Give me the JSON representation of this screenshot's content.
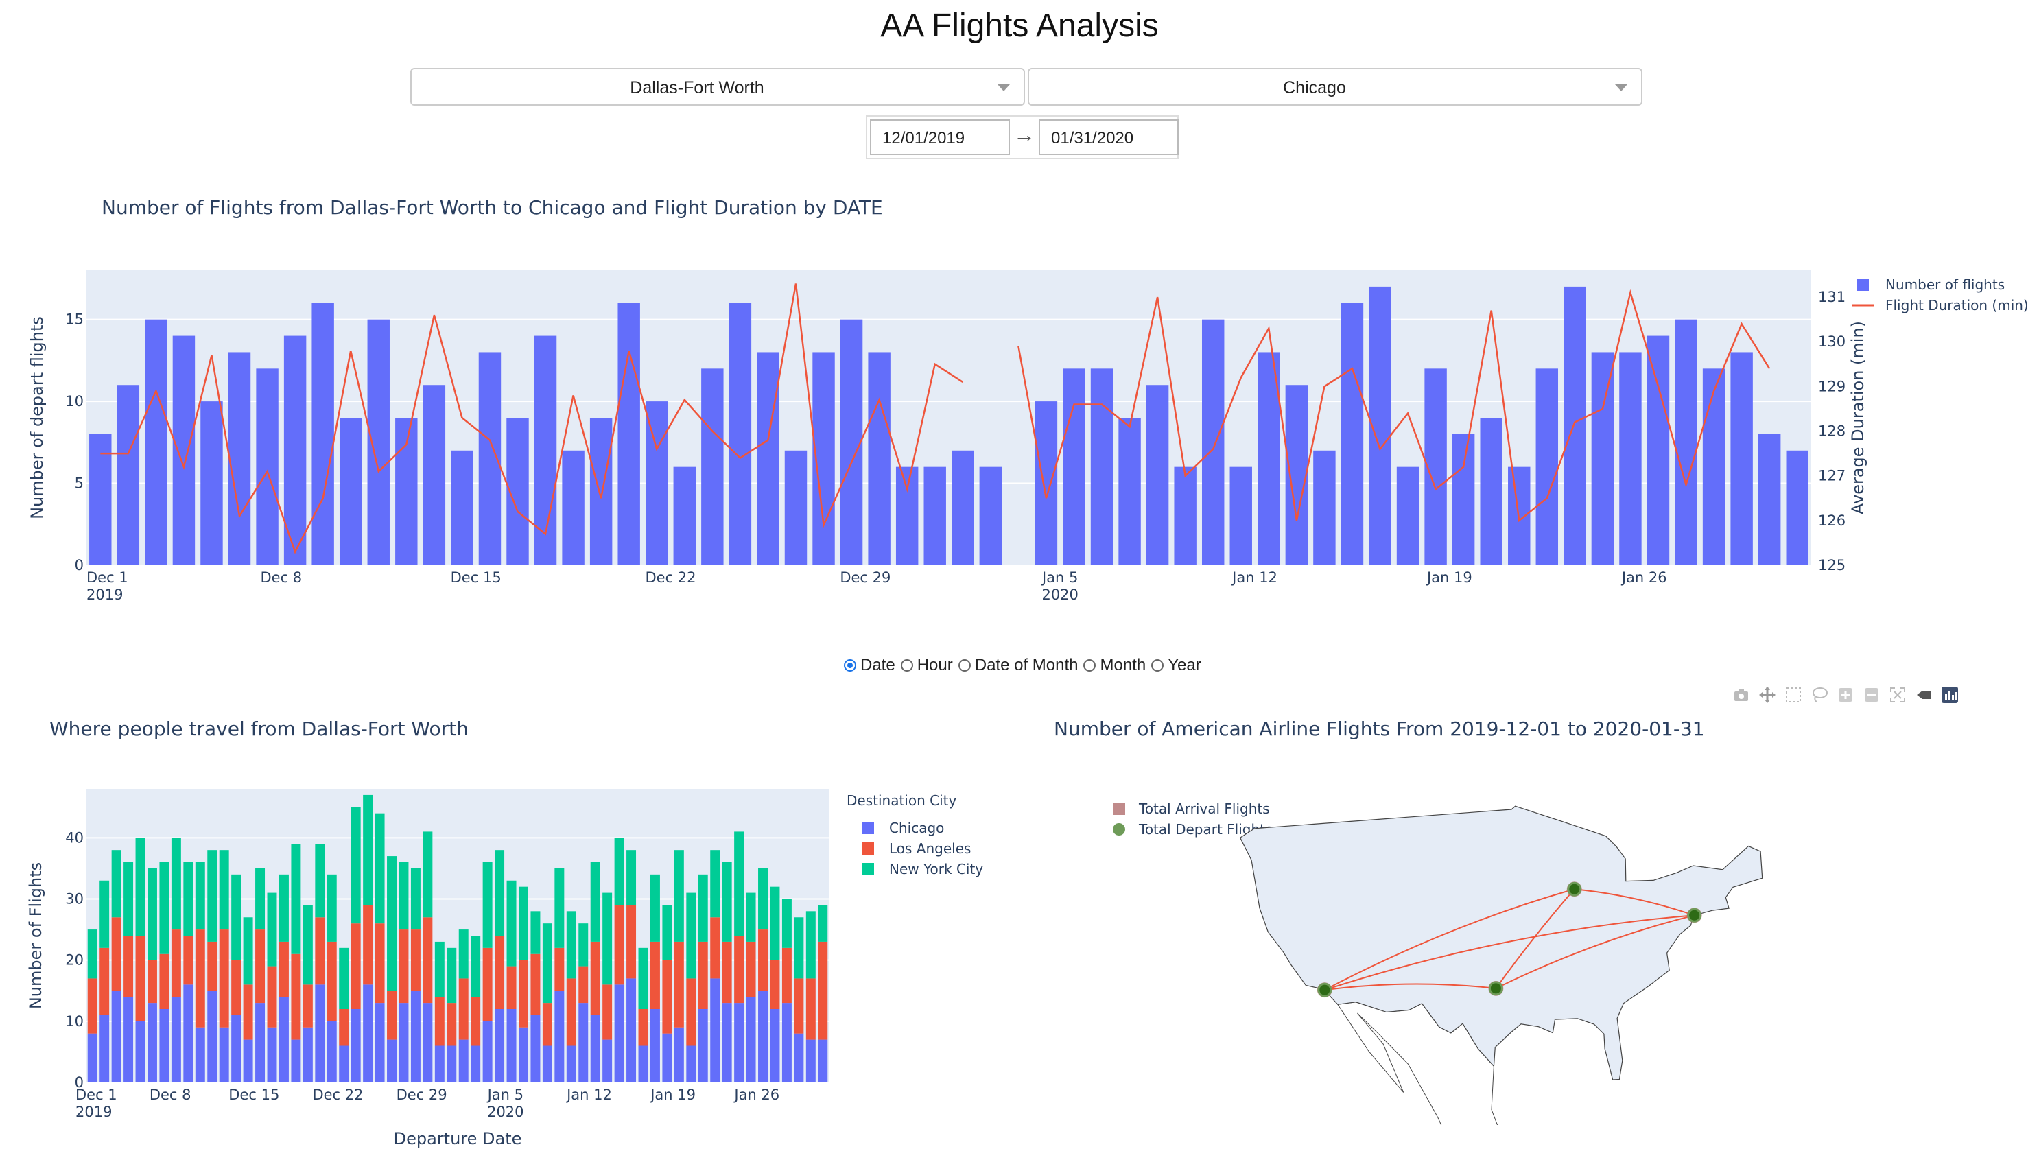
{
  "app": {
    "title": "AA Flights Analysis"
  },
  "filters": {
    "origin": "Dallas-Fort Worth",
    "destination": "Chicago",
    "start_date": "12/01/2019",
    "end_date": "01/31/2020",
    "arrow": "→"
  },
  "granularity": {
    "selected": "Date",
    "options": [
      "Date",
      "Hour",
      "Date of Month",
      "Month",
      "Year"
    ]
  },
  "colors": {
    "blue": "#636efa",
    "red": "#ef553b",
    "green": "#00cc96",
    "plot_bg": "#e5ecf6",
    "arrival_legend": "#c08a8a",
    "depart_legend": "#6e9b58"
  },
  "modebar": {
    "icons": [
      "camera-icon",
      "pan-icon",
      "box-select-icon",
      "lasso-icon",
      "zoom-in-icon",
      "zoom-out-icon",
      "autoscale-icon",
      "home-icon",
      "plotly-logo-icon"
    ]
  },
  "chart_data": [
    {
      "id": "flights_by_date",
      "type": "bar",
      "title": "Number of Flights from Dallas-Fort Worth to Chicago and Flight Duration by DATE",
      "xlabel": "",
      "ylabel": "Number of depart flights",
      "y2label": "Average Duration (min)",
      "ylim": [
        0,
        18
      ],
      "y2lim": [
        125,
        131.6
      ],
      "yticks": [
        0,
        5,
        10,
        15
      ],
      "y2ticks": [
        125,
        126,
        127,
        128,
        129,
        130,
        131
      ],
      "x": [
        "2019-12-01",
        "2019-12-02",
        "2019-12-03",
        "2019-12-04",
        "2019-12-05",
        "2019-12-06",
        "2019-12-07",
        "2019-12-08",
        "2019-12-09",
        "2019-12-10",
        "2019-12-11",
        "2019-12-12",
        "2019-12-13",
        "2019-12-14",
        "2019-12-15",
        "2019-12-16",
        "2019-12-17",
        "2019-12-18",
        "2019-12-19",
        "2019-12-20",
        "2019-12-21",
        "2019-12-22",
        "2019-12-23",
        "2019-12-24",
        "2019-12-25",
        "2019-12-26",
        "2019-12-27",
        "2019-12-28",
        "2019-12-29",
        "2019-12-30",
        "2019-12-31",
        "2020-01-01",
        "2020-01-02",
        "2020-01-03",
        "2020-01-04",
        "2020-01-05",
        "2020-01-06",
        "2020-01-07",
        "2020-01-08",
        "2020-01-09",
        "2020-01-10",
        "2020-01-11",
        "2020-01-12",
        "2020-01-13",
        "2020-01-14",
        "2020-01-15",
        "2020-01-16",
        "2020-01-17",
        "2020-01-18",
        "2020-01-19",
        "2020-01-20",
        "2020-01-21",
        "2020-01-22",
        "2020-01-23",
        "2020-01-24",
        "2020-01-25",
        "2020-01-26",
        "2020-01-27",
        "2020-01-28",
        "2020-01-29",
        "2020-01-30",
        "2020-01-31"
      ],
      "xtick_labels": [
        {
          "date": "2019-12-01",
          "line1": "Dec 1",
          "line2": "2019"
        },
        {
          "date": "2019-12-08",
          "line1": "Dec 8",
          "line2": ""
        },
        {
          "date": "2019-12-15",
          "line1": "Dec 15",
          "line2": ""
        },
        {
          "date": "2019-12-22",
          "line1": "Dec 22",
          "line2": ""
        },
        {
          "date": "2019-12-29",
          "line1": "Dec 29",
          "line2": ""
        },
        {
          "date": "2020-01-05",
          "line1": "Jan 5",
          "line2": "2020"
        },
        {
          "date": "2020-01-12",
          "line1": "Jan 12",
          "line2": ""
        },
        {
          "date": "2020-01-19",
          "line1": "Jan 19",
          "line2": ""
        },
        {
          "date": "2020-01-26",
          "line1": "Jan 26",
          "line2": ""
        }
      ],
      "series": [
        {
          "name": "Number of flights",
          "kind": "bar",
          "axis": "y",
          "values": [
            8,
            11,
            15,
            14,
            10,
            13,
            12,
            14,
            16,
            9,
            15,
            9,
            11,
            7,
            13,
            9,
            14,
            7,
            9,
            16,
            10,
            6,
            12,
            16,
            13,
            7,
            13,
            15,
            13,
            6,
            6,
            7,
            6,
            null,
            10,
            12,
            12,
            9,
            11,
            6,
            15,
            6,
            13,
            11,
            7,
            16,
            17,
            6,
            12,
            8,
            9,
            6,
            12,
            17,
            13,
            13,
            14,
            15,
            12,
            13,
            8,
            7
          ]
        },
        {
          "name": "Flight Duration (min)",
          "kind": "line",
          "axis": "y2",
          "values": [
            127.5,
            127.5,
            128.9,
            127.2,
            129.7,
            126.1,
            127.1,
            125.3,
            126.5,
            129.8,
            127.1,
            127.7,
            130.6,
            128.3,
            127.8,
            126.2,
            125.7,
            128.8,
            126.5,
            129.8,
            127.6,
            128.7,
            128.0,
            127.4,
            127.8,
            131.3,
            125.9,
            127.3,
            128.7,
            126.7,
            129.5,
            129.1,
            null,
            129.9,
            126.5,
            128.6,
            128.6,
            128.1,
            131.0,
            127.0,
            127.6,
            129.2,
            130.3,
            126.0,
            129.0,
            129.4,
            127.6,
            128.4,
            126.7,
            127.2,
            130.7,
            126.0,
            126.5,
            128.2,
            128.5,
            131.1,
            129.0,
            126.8,
            128.9,
            130.4,
            129.4,
            null
          ]
        }
      ],
      "legend": "top-right"
    },
    {
      "id": "destinations_by_date",
      "type": "bar",
      "stacked": true,
      "title": "Where people travel from Dallas-Fort Worth",
      "xlabel": "Departure Date",
      "ylabel": "Number of Flights",
      "ylim": [
        0,
        48
      ],
      "yticks": [
        0,
        10,
        20,
        30,
        40
      ],
      "legend_title": "Destination City",
      "legend": "right",
      "xtick_labels": [
        {
          "index": 0,
          "line1": "Dec 1",
          "line2": "2019"
        },
        {
          "index": 7,
          "line1": "Dec 8",
          "line2": ""
        },
        {
          "index": 14,
          "line1": "Dec 15",
          "line2": ""
        },
        {
          "index": 21,
          "line1": "Dec 22",
          "line2": ""
        },
        {
          "index": 28,
          "line1": "Dec 29",
          "line2": ""
        },
        {
          "index": 35,
          "line1": "Jan 5",
          "line2": "2020"
        },
        {
          "index": 42,
          "line1": "Jan 12",
          "line2": ""
        },
        {
          "index": 49,
          "line1": "Jan 19",
          "line2": ""
        },
        {
          "index": 56,
          "line1": "Jan 26",
          "line2": ""
        }
      ],
      "series": [
        {
          "name": "Chicago",
          "values": [
            8,
            11,
            15,
            14,
            10,
            13,
            12,
            14,
            16,
            9,
            15,
            9,
            11,
            7,
            13,
            9,
            14,
            7,
            9,
            16,
            10,
            6,
            12,
            16,
            13,
            7,
            13,
            15,
            13,
            6,
            6,
            7,
            6,
            10,
            12,
            12,
            9,
            11,
            6,
            15,
            6,
            13,
            11,
            7,
            16,
            17,
            6,
            12,
            8,
            9,
            6,
            12,
            17,
            13,
            13,
            14,
            15,
            12,
            13,
            8,
            7,
            7
          ]
        },
        {
          "name": "Los Angeles",
          "values": [
            9,
            11,
            12,
            10,
            14,
            7,
            9,
            11,
            8,
            16,
            8,
            16,
            9,
            9,
            12,
            10,
            9,
            14,
            7,
            11,
            13,
            6,
            14,
            13,
            13,
            8,
            12,
            10,
            14,
            8,
            7,
            10,
            8,
            12,
            12,
            7,
            11,
            10,
            7,
            7,
            11,
            6,
            12,
            9,
            13,
            12,
            6,
            11,
            12,
            14,
            11,
            11,
            10,
            10,
            11,
            9,
            10,
            8,
            9,
            9,
            10,
            16
          ]
        },
        {
          "name": "New York City",
          "values": [
            8,
            11,
            11,
            12,
            16,
            15,
            15,
            15,
            12,
            11,
            15,
            13,
            14,
            11,
            10,
            12,
            11,
            18,
            13,
            12,
            11,
            10,
            19,
            18,
            18,
            22,
            11,
            10,
            14,
            9,
            9,
            8,
            10,
            14,
            14,
            14,
            12,
            7,
            13,
            13,
            11,
            7,
            13,
            15,
            11,
            9,
            10,
            11,
            9,
            15,
            14,
            11,
            11,
            13,
            17,
            8,
            10,
            12,
            8,
            10,
            11,
            6
          ]
        }
      ]
    },
    {
      "id": "route_map",
      "type": "map",
      "title": "Number of American Airline Flights From 2019-12-01 to 2020-01-31",
      "legend": "top-left",
      "series": [
        {
          "name": "Total Arrival Flights"
        },
        {
          "name": "Total Depart Flights"
        }
      ],
      "airports": [
        {
          "code": "DFW",
          "lon": -97.04,
          "lat": 32.9
        },
        {
          "code": "ORD",
          "lon": -87.9,
          "lat": 41.98
        },
        {
          "code": "LAX",
          "lon": -118.41,
          "lat": 33.94
        },
        {
          "code": "JFK",
          "lon": -73.78,
          "lat": 40.64
        }
      ],
      "routes": [
        [
          "DFW",
          "ORD"
        ],
        [
          "DFW",
          "LAX"
        ],
        [
          "DFW",
          "JFK"
        ],
        [
          "ORD",
          "JFK"
        ],
        [
          "LAX",
          "ORD"
        ],
        [
          "LAX",
          "JFK"
        ]
      ]
    }
  ]
}
